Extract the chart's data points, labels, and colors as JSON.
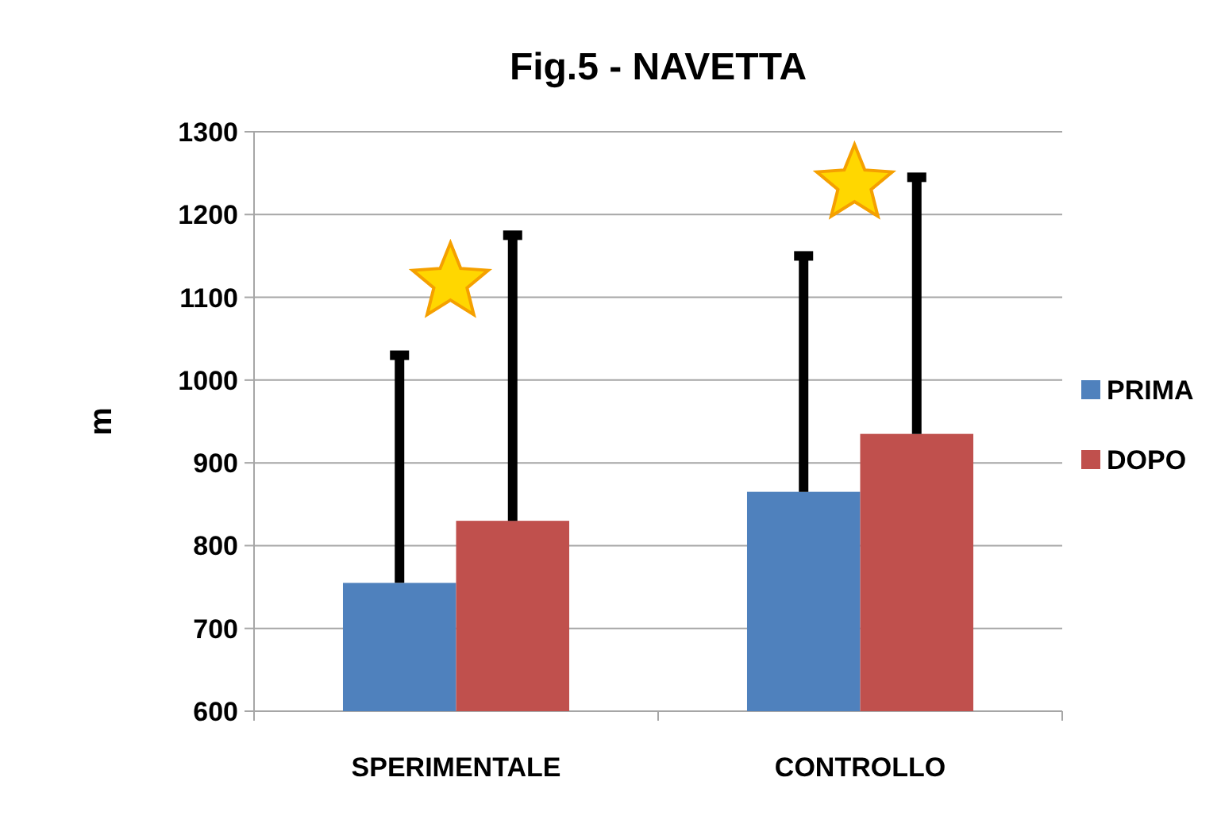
{
  "chart_data": {
    "type": "bar",
    "title": "Fig.5 - NAVETTA",
    "ylabel": "m",
    "categories": [
      "SPERIMENTALE",
      "CONTROLLO"
    ],
    "series": [
      {
        "name": "PRIMA",
        "color": "#4f81bd",
        "values": [
          755,
          865
        ],
        "errors": [
          [
            755,
            1030
          ],
          [
            865,
            1150
          ]
        ]
      },
      {
        "name": "DOPO",
        "color": "#c0504d",
        "values": [
          830,
          935
        ],
        "errors": [
          [
            830,
            1175
          ],
          [
            935,
            1245
          ]
        ]
      }
    ],
    "ylim": [
      600,
      1300
    ],
    "yticks": [
      600,
      700,
      800,
      900,
      1000,
      1100,
      1200,
      1300
    ],
    "grid": "y",
    "legend": "right"
  }
}
